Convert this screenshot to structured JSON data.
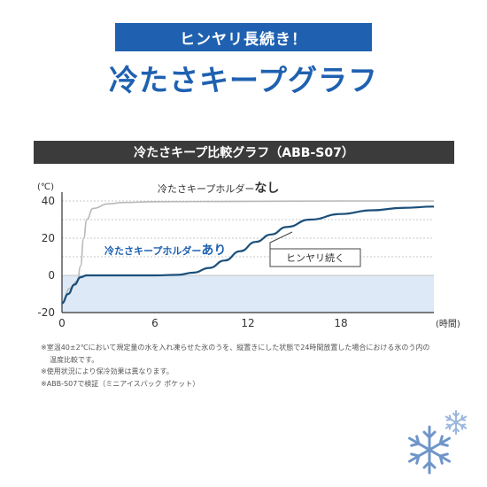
{
  "banner": "ヒンヤリ長続き！",
  "title": "冷たさキープグラフ",
  "chart_header": "冷たさキープ比較グラフ（ABB-S07）",
  "chart_data": {
    "type": "line",
    "title": "冷たさキープ比較グラフ（ABB-S07）",
    "y_unit": "(℃)",
    "x_unit": "(時間)",
    "xlim": [
      0,
      24
    ],
    "ylim": [
      -20,
      40
    ],
    "x_ticks": [
      0,
      6,
      12,
      18
    ],
    "y_ticks": [
      40,
      20,
      0,
      -20
    ],
    "series": [
      {
        "name": "冷たさキープホルダーなし",
        "points": [
          [
            0,
            -15
          ],
          [
            0.5,
            -7
          ],
          [
            1.0,
            -3
          ],
          [
            1.2,
            5
          ],
          [
            1.4,
            20
          ],
          [
            1.6,
            30
          ],
          [
            2,
            36
          ],
          [
            3,
            38.5
          ],
          [
            4,
            39.2
          ],
          [
            6,
            39.6
          ],
          [
            12,
            39.8
          ],
          [
            18,
            40
          ],
          [
            24,
            40
          ]
        ]
      },
      {
        "name": "冷たさキープホルダーあり",
        "points": [
          [
            0,
            -15
          ],
          [
            0.4,
            -10
          ],
          [
            0.8,
            -5
          ],
          [
            1.2,
            -1
          ],
          [
            1.6,
            0
          ],
          [
            3,
            0
          ],
          [
            6,
            0
          ],
          [
            7.5,
            0.3
          ],
          [
            8.5,
            1.5
          ],
          [
            9.5,
            4
          ],
          [
            10.5,
            8
          ],
          [
            11.5,
            13
          ],
          [
            12.5,
            18
          ],
          [
            13.5,
            22
          ],
          [
            14.5,
            26
          ],
          [
            16,
            30
          ],
          [
            18,
            33
          ],
          [
            20,
            35
          ],
          [
            22,
            36.3
          ],
          [
            24,
            37
          ]
        ]
      }
    ],
    "annotations": [
      {
        "text": "ヒンヤリ続く"
      }
    ]
  },
  "labels": {
    "without_main": "冷たさキープホルダー",
    "without_suffix": "なし",
    "with_main": "冷たさキープホルダー",
    "with_suffix": "あり",
    "keep_cool": "ヒンヤリ続く"
  },
  "notes": [
    "※室温40±2℃において規定量の水を入れ凍らせた氷のうを、縦置きにした状態で24時間放置した場合における氷のう内の",
    "温度比較です。",
    "※使用状況により保冷効果は異なります。",
    "※ABB-S07で検証（ミニアイスパック ポケット）"
  ],
  "colors": {
    "accent": "#1f61b0",
    "with_line": "#1a4f7a",
    "without_line": "#b9b9b9",
    "band_fill": "#dde9f6"
  }
}
